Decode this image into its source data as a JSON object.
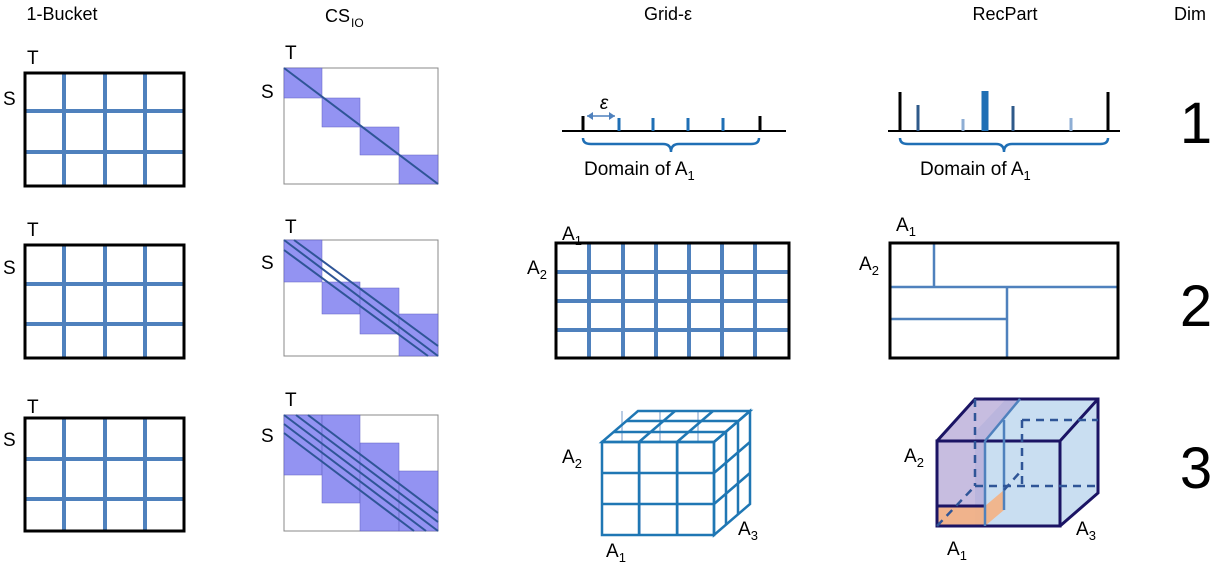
{
  "headers": {
    "bucket": "1-Bucket",
    "cs_main": "CS",
    "cs_sub": "IO",
    "grid": "Grid-ε",
    "recpart": "RecPart",
    "dim": "Dim"
  },
  "labels": {
    "T": "T",
    "S": "S",
    "A": "A",
    "sub1": "1",
    "sub2": "2",
    "sub3": "3",
    "epsilon": "ε",
    "domain_text": "Domain of A"
  },
  "dims": [
    "1",
    "2",
    "3"
  ],
  "colors": {
    "grid_line": "#4f81bd",
    "band_fill": "#8080f0",
    "diag_line": "#2f5597",
    "tick_blue": "#1f6fb5",
    "tick_dark": "#2f5a8a",
    "tick_light": "#8eaed4",
    "cube_edge": "#1f77b4",
    "cube_back": "#b8cce4",
    "purple_fill": "#b4a7d6",
    "blue_fill": "#9dc3e6",
    "orange_fill": "#f4b183",
    "dark_edge": "#1b1464"
  }
}
